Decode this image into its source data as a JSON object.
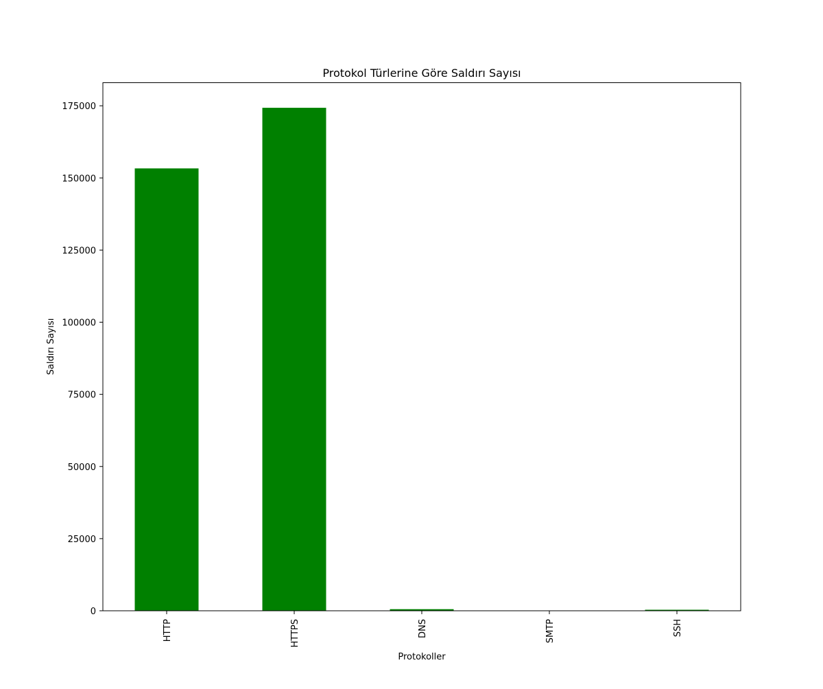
{
  "chart_data": {
    "type": "bar",
    "title": "Protokol Türlerine Göre Saldırı Sayısı",
    "xlabel": "Protokoller",
    "ylabel": "Saldırı Sayısı",
    "categories": [
      "HTTP",
      "HTTPS",
      "DNS",
      "SMTP",
      "SSH"
    ],
    "values": [
      153300,
      174300,
      550,
      50,
      350
    ],
    "ylim": [
      0,
      183000
    ],
    "yticks": [
      0,
      25000,
      50000,
      75000,
      100000,
      125000,
      150000,
      175000
    ],
    "bar_color": "#008000",
    "grid": false
  }
}
